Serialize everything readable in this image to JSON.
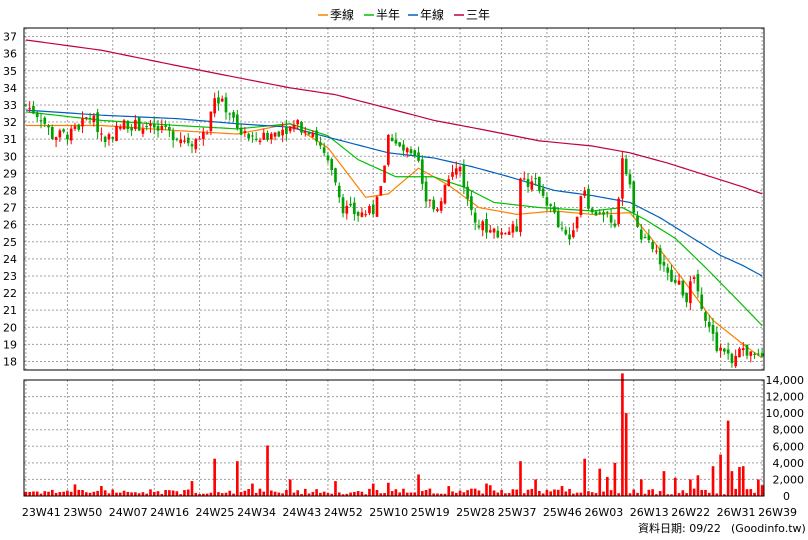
{
  "legend": [
    {
      "label": "季線",
      "color": "#ff8000"
    },
    {
      "label": "半年",
      "color": "#00c000"
    },
    {
      "label": "年線",
      "color": "#0060c0"
    },
    {
      "label": "三年",
      "color": "#c00040"
    }
  ],
  "footer": {
    "date_label": "資料日期: 09/22",
    "source_label": "(Goodinfo.tw)"
  },
  "colors": {
    "up": "#ff0000",
    "down": "#00a000",
    "volume": "#ff0000",
    "grid": "#a0a0a0",
    "frame": "#000000",
    "background": "#ffffff"
  },
  "chart_data": {
    "type": "candlestick",
    "price_axis": {
      "ticks": [
        18,
        19,
        20,
        21,
        22,
        23,
        24,
        25,
        26,
        27,
        28,
        29,
        30,
        31,
        32,
        33,
        34,
        35,
        36,
        37
      ],
      "range": [
        17.5,
        37.5
      ]
    },
    "volume_axis": {
      "ticks": [
        2000,
        4000,
        6000,
        8000,
        10000,
        12000,
        14000
      ],
      "tick_labels": [
        "2,000",
        "4,000",
        "6,000",
        "8,000",
        "10,000",
        "12,000",
        "14,000"
      ],
      "range": [
        0,
        14000
      ]
    },
    "x_axis": {
      "labels": [
        "23W41",
        "23W50",
        "24W07",
        "24W16",
        "24W25",
        "24W34",
        "24W43",
        "24W52",
        "25W10",
        "25W19",
        "25W28",
        "25W37",
        "25W46",
        "26W03",
        "26W13",
        "26W22",
        "26W31",
        "26W39"
      ]
    },
    "close_keypoints": [
      [
        0,
        33.0
      ],
      [
        4,
        32.3
      ],
      [
        7,
        31.2
      ],
      [
        12,
        31.3
      ],
      [
        17,
        32.4
      ],
      [
        21,
        31.0
      ],
      [
        26,
        31.9
      ],
      [
        30,
        31.8
      ],
      [
        35,
        31.5
      ],
      [
        40,
        31.2
      ],
      [
        44,
        30.8
      ],
      [
        48,
        31.4
      ],
      [
        50,
        33.5
      ],
      [
        54,
        32.6
      ],
      [
        56,
        31.5
      ],
      [
        60,
        31.0
      ],
      [
        64,
        31.2
      ],
      [
        68,
        31.6
      ],
      [
        72,
        31.8
      ],
      [
        76,
        31.5
      ],
      [
        78,
        30.5
      ],
      [
        82,
        28.5
      ],
      [
        84,
        27.0
      ],
      [
        88,
        26.6
      ],
      [
        92,
        26.8
      ],
      [
        94,
        28.0
      ],
      [
        96,
        31.2
      ],
      [
        98,
        30.6
      ],
      [
        101,
        30.2
      ],
      [
        104,
        29.5
      ],
      [
        106,
        27.5
      ],
      [
        109,
        27.0
      ],
      [
        111,
        28.2
      ],
      [
        113,
        29.0
      ],
      [
        115,
        29.4
      ],
      [
        117,
        27.4
      ],
      [
        120,
        26.0
      ],
      [
        124,
        25.6
      ],
      [
        127,
        25.6
      ],
      [
        130,
        25.8
      ],
      [
        131,
        29.0
      ],
      [
        133,
        28.2
      ],
      [
        135,
        28.6
      ],
      [
        137,
        27.8
      ],
      [
        140,
        26.5
      ],
      [
        142,
        25.5
      ],
      [
        144,
        25.2
      ],
      [
        146,
        26.8
      ],
      [
        148,
        27.9
      ],
      [
        150,
        26.6
      ],
      [
        152,
        26.8
      ],
      [
        154,
        26.4
      ],
      [
        156,
        25.6
      ],
      [
        158,
        30.0
      ],
      [
        160,
        28.6
      ],
      [
        161,
        26.6
      ],
      [
        163,
        25.0
      ],
      [
        165,
        24.8
      ],
      [
        167,
        24.4
      ],
      [
        169,
        23.3
      ],
      [
        171,
        22.7
      ],
      [
        173,
        22.4
      ],
      [
        175,
        21.8
      ],
      [
        177,
        22.9
      ],
      [
        179,
        21.4
      ],
      [
        181,
        19.9
      ],
      [
        183,
        18.9
      ],
      [
        185,
        18.6
      ],
      [
        187,
        18.2
      ],
      [
        189,
        19.0
      ],
      [
        191,
        18.3
      ],
      [
        193,
        18.2
      ],
      [
        195,
        18.1
      ]
    ],
    "volume_spikes": [
      [
        13,
        1400
      ],
      [
        20,
        1200
      ],
      [
        33,
        800
      ],
      [
        44,
        1800
      ],
      [
        50,
        4500
      ],
      [
        56,
        4200
      ],
      [
        60,
        1500
      ],
      [
        64,
        6100
      ],
      [
        70,
        2000
      ],
      [
        82,
        1800
      ],
      [
        92,
        1500
      ],
      [
        96,
        1600
      ],
      [
        104,
        2600
      ],
      [
        112,
        1200
      ],
      [
        122,
        1500
      ],
      [
        123,
        1300
      ],
      [
        131,
        4200
      ],
      [
        135,
        2000
      ],
      [
        142,
        1200
      ],
      [
        148,
        4500
      ],
      [
        152,
        3300
      ],
      [
        154,
        2300
      ],
      [
        156,
        4000
      ],
      [
        158,
        15000
      ],
      [
        159,
        10000
      ],
      [
        163,
        2000
      ],
      [
        169,
        3000
      ],
      [
        172,
        2200
      ],
      [
        176,
        2000
      ],
      [
        178,
        2500
      ],
      [
        182,
        3600
      ],
      [
        184,
        5000
      ],
      [
        186,
        9100
      ],
      [
        187,
        3000
      ],
      [
        189,
        3500
      ],
      [
        190,
        3600
      ],
      [
        194,
        2000
      ],
      [
        195,
        1300
      ]
    ],
    "moving_averages": [
      {
        "name": "季線",
        "points": [
          [
            0,
            31.8
          ],
          [
            20,
            31.8
          ],
          [
            40,
            31.5
          ],
          [
            56,
            31.3
          ],
          [
            70,
            31.9
          ],
          [
            80,
            30.5
          ],
          [
            90,
            27.6
          ],
          [
            96,
            27.8
          ],
          [
            104,
            29.3
          ],
          [
            112,
            28.3
          ],
          [
            120,
            27.0
          ],
          [
            130,
            26.6
          ],
          [
            140,
            26.8
          ],
          [
            150,
            26.6
          ],
          [
            160,
            26.7
          ],
          [
            166,
            25.1
          ],
          [
            174,
            22.8
          ],
          [
            182,
            20.4
          ],
          [
            190,
            19.0
          ],
          [
            195,
            18.2
          ]
        ]
      },
      {
        "name": "半年",
        "points": [
          [
            0,
            32.6
          ],
          [
            20,
            32.1
          ],
          [
            40,
            31.8
          ],
          [
            56,
            31.6
          ],
          [
            70,
            31.9
          ],
          [
            80,
            31.2
          ],
          [
            88,
            29.8
          ],
          [
            98,
            28.8
          ],
          [
            108,
            28.8
          ],
          [
            116,
            28.2
          ],
          [
            124,
            27.3
          ],
          [
            136,
            27.0
          ],
          [
            150,
            26.8
          ],
          [
            158,
            27.0
          ],
          [
            164,
            26.3
          ],
          [
            172,
            25.2
          ],
          [
            180,
            23.5
          ],
          [
            188,
            21.7
          ],
          [
            195,
            20.1
          ]
        ]
      },
      {
        "name": "年線",
        "points": [
          [
            0,
            32.7
          ],
          [
            20,
            32.4
          ],
          [
            40,
            32.2
          ],
          [
            56,
            31.9
          ],
          [
            70,
            31.7
          ],
          [
            82,
            31.0
          ],
          [
            96,
            30.2
          ],
          [
            108,
            29.9
          ],
          [
            118,
            29.4
          ],
          [
            128,
            28.8
          ],
          [
            140,
            28.0
          ],
          [
            150,
            27.7
          ],
          [
            160,
            27.3
          ],
          [
            168,
            26.4
          ],
          [
            176,
            25.3
          ],
          [
            184,
            24.2
          ],
          [
            190,
            23.6
          ],
          [
            195,
            23.0
          ]
        ]
      },
      {
        "name": "三年",
        "points": [
          [
            0,
            36.8
          ],
          [
            20,
            36.2
          ],
          [
            40,
            35.3
          ],
          [
            56,
            34.6
          ],
          [
            70,
            34.0
          ],
          [
            82,
            33.6
          ],
          [
            96,
            32.8
          ],
          [
            108,
            32.1
          ],
          [
            120,
            31.6
          ],
          [
            136,
            30.9
          ],
          [
            150,
            30.6
          ],
          [
            160,
            30.2
          ],
          [
            170,
            29.6
          ],
          [
            180,
            28.9
          ],
          [
            190,
            28.2
          ],
          [
            195,
            27.8
          ]
        ]
      }
    ]
  }
}
